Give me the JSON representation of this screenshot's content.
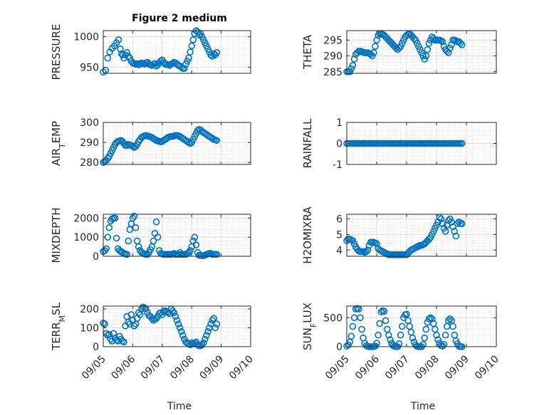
{
  "figure": {
    "title": "Figure 2 medium",
    "xlabel": "Time",
    "x_ticks": [
      "09/05",
      "09/06",
      "09/07",
      "09/08",
      "09/09",
      "09/10"
    ],
    "marker_color": "#0072bd",
    "grid_color": "#dcdcdc"
  },
  "chart_data": [
    {
      "type": "scatter",
      "title": "Figure 2 medium",
      "ylabel": "PRESSURE",
      "xlabel": "",
      "xlim": [
        0,
        5
      ],
      "ylim": [
        940,
        1010
      ],
      "yticks": [
        950,
        1000
      ],
      "x": [
        0.0,
        0.08,
        0.15,
        0.22,
        0.3,
        0.38,
        0.45,
        0.52,
        0.58,
        0.62,
        0.66,
        0.7,
        0.75,
        0.8,
        0.85,
        0.9,
        0.95,
        1.0,
        1.05,
        1.1,
        1.15,
        1.2,
        1.25,
        1.3,
        1.35,
        1.4,
        1.45,
        1.5,
        1.55,
        1.6,
        1.65,
        1.7,
        1.75,
        1.8,
        1.85,
        1.9,
        1.95,
        2.0,
        2.05,
        2.1,
        2.15,
        2.2,
        2.25,
        2.3,
        2.35,
        2.4,
        2.45,
        2.5,
        2.55,
        2.6,
        2.65,
        2.7,
        2.75,
        2.8,
        2.85,
        2.9,
        2.95,
        3.0,
        3.05,
        3.1,
        3.15,
        3.2,
        3.25,
        3.3,
        3.35,
        3.4,
        3.45,
        3.5,
        3.55,
        3.6,
        3.65,
        3.7,
        3.75,
        3.8,
        3.85
      ],
      "y": [
        942,
        945,
        965,
        975,
        981,
        985,
        990,
        995,
        980,
        972,
        970,
        965,
        970,
        974,
        968,
        965,
        960,
        957,
        956,
        955,
        956,
        954,
        955,
        957,
        956,
        955,
        957,
        958,
        955,
        954,
        953,
        955,
        956,
        952,
        954,
        957,
        960,
        962,
        958,
        955,
        955,
        954,
        953,
        955,
        956,
        958,
        957,
        955,
        953,
        952,
        950,
        948,
        948,
        955,
        960,
        965,
        975,
        985,
        995,
        1005,
        1010,
        1008,
        1003,
        1005,
        1000,
        995,
        990,
        985,
        980,
        975,
        970,
        968,
        972,
        970,
        974
      ]
    },
    {
      "type": "scatter",
      "ylabel": "THETA",
      "xlabel": "",
      "xlim": [
        0,
        5
      ],
      "ylim": [
        284.5,
        298
      ],
      "yticks": [
        285,
        290,
        295
      ],
      "x": [
        0.0,
        0.05,
        0.1,
        0.15,
        0.2,
        0.25,
        0.3,
        0.35,
        0.4,
        0.45,
        0.5,
        0.55,
        0.6,
        0.65,
        0.7,
        0.75,
        0.8,
        0.85,
        0.9,
        0.95,
        1.0,
        1.05,
        1.1,
        1.15,
        1.2,
        1.25,
        1.3,
        1.35,
        1.4,
        1.45,
        1.5,
        1.55,
        1.6,
        1.65,
        1.7,
        1.75,
        1.8,
        1.85,
        1.9,
        1.95,
        2.0,
        2.05,
        2.1,
        2.15,
        2.2,
        2.25,
        2.3,
        2.35,
        2.4,
        2.45,
        2.5,
        2.55,
        2.6,
        2.65,
        2.7,
        2.75,
        2.8,
        2.85,
        2.9,
        2.95,
        3.0,
        3.05,
        3.1,
        3.15,
        3.2,
        3.25,
        3.3,
        3.35,
        3.4,
        3.45,
        3.5,
        3.55,
        3.6,
        3.65,
        3.7,
        3.75,
        3.8,
        3.85
      ],
      "y": [
        285,
        285,
        285,
        286,
        287,
        289,
        290.5,
        291,
        291.5,
        291.5,
        291.3,
        291.2,
        291,
        291,
        291,
        290.8,
        290.5,
        290,
        291,
        293,
        295,
        296.5,
        297,
        297,
        296.8,
        296.5,
        296,
        295.5,
        295,
        294.5,
        294,
        293.5,
        293,
        292.5,
        292,
        292.5,
        293,
        294,
        295,
        296,
        296.5,
        296.8,
        297,
        296.5,
        296,
        295.5,
        295,
        294,
        293,
        292,
        291,
        290,
        289,
        290,
        292,
        294,
        295,
        296,
        295.5,
        295,
        295,
        295,
        295,
        294.8,
        294.5,
        293,
        292,
        291.5,
        291,
        292.5,
        293.5,
        295,
        295,
        294.8,
        294.5,
        294.5,
        294,
        293.5
      ]
    },
    {
      "type": "scatter",
      "ylabel": "AIR_TEMP",
      "xlabel": "",
      "xlim": [
        0,
        5
      ],
      "ylim": [
        279,
        300
      ],
      "yticks": [
        280,
        290,
        300
      ],
      "x": [
        0.0,
        0.05,
        0.1,
        0.15,
        0.2,
        0.25,
        0.3,
        0.35,
        0.4,
        0.45,
        0.5,
        0.55,
        0.6,
        0.65,
        0.7,
        0.75,
        0.8,
        0.85,
        0.9,
        0.95,
        1.0,
        1.05,
        1.1,
        1.15,
        1.2,
        1.25,
        1.3,
        1.35,
        1.4,
        1.45,
        1.5,
        1.55,
        1.6,
        1.65,
        1.7,
        1.75,
        1.8,
        1.85,
        1.9,
        1.95,
        2.0,
        2.05,
        2.1,
        2.15,
        2.2,
        2.25,
        2.3,
        2.35,
        2.4,
        2.45,
        2.5,
        2.55,
        2.6,
        2.65,
        2.7,
        2.75,
        2.8,
        2.85,
        2.9,
        2.95,
        3.0,
        3.05,
        3.1,
        3.15,
        3.2,
        3.25,
        3.3,
        3.35,
        3.4,
        3.45,
        3.5,
        3.55,
        3.6,
        3.65,
        3.7,
        3.75,
        3.8,
        3.85
      ],
      "y": [
        280,
        280.5,
        281,
        282,
        283,
        284.5,
        286,
        287.5,
        289,
        290,
        290.5,
        290.8,
        291,
        290.5,
        289.5,
        288.5,
        288.5,
        289,
        288.8,
        288.5,
        288,
        287.5,
        288,
        289,
        290.5,
        291.5,
        292.5,
        293,
        293.3,
        293.5,
        293.2,
        293,
        292.8,
        292.5,
        292,
        291.5,
        291,
        290.8,
        290.5,
        290.3,
        290.5,
        291,
        291.5,
        292,
        292.5,
        292.8,
        293,
        293,
        293.2,
        293.5,
        293.5,
        293.3,
        293,
        292.5,
        292,
        291.5,
        291,
        290.5,
        290,
        289.5,
        290,
        291.5,
        293,
        294.5,
        296,
        296.5,
        296.2,
        295.5,
        295,
        294.5,
        294,
        293.5,
        293,
        292.5,
        292,
        291.5,
        291.2,
        291
      ]
    },
    {
      "type": "scatter",
      "ylabel": "RAINFALL",
      "xlabel": "",
      "xlim": [
        0,
        5
      ],
      "ylim": [
        -1,
        1
      ],
      "yticks": [
        -1,
        0,
        1
      ],
      "x": [
        0.0,
        0.05,
        0.1,
        0.15,
        0.2,
        0.25,
        0.3,
        0.35,
        0.4,
        0.45,
        0.5,
        0.55,
        0.6,
        0.65,
        0.7,
        0.75,
        0.8,
        0.85,
        0.9,
        0.95,
        1.0,
        1.05,
        1.1,
        1.15,
        1.2,
        1.25,
        1.3,
        1.35,
        1.4,
        1.45,
        1.5,
        1.55,
        1.6,
        1.65,
        1.7,
        1.75,
        1.8,
        1.85,
        1.9,
        1.95,
        2.0,
        2.05,
        2.1,
        2.15,
        2.2,
        2.25,
        2.3,
        2.35,
        2.4,
        2.45,
        2.5,
        2.55,
        2.6,
        2.65,
        2.7,
        2.75,
        2.8,
        2.85,
        2.9,
        2.95,
        3.0,
        3.05,
        3.1,
        3.15,
        3.2,
        3.25,
        3.3,
        3.35,
        3.4,
        3.45,
        3.5,
        3.55,
        3.6,
        3.65,
        3.7,
        3.75,
        3.8,
        3.85
      ],
      "y": [
        0,
        0,
        0,
        0,
        0,
        0,
        0,
        0,
        0,
        0,
        0,
        0,
        0,
        0,
        0,
        0,
        0,
        0,
        0,
        0,
        0,
        0,
        0,
        0,
        0,
        0,
        0,
        0,
        0,
        0,
        0,
        0,
        0,
        0,
        0,
        0,
        0,
        0,
        0,
        0,
        0,
        0,
        0,
        0,
        0,
        0,
        0,
        0,
        0,
        0,
        0,
        0,
        0,
        0,
        0,
        0,
        0,
        0,
        0,
        0,
        0,
        0,
        0,
        0,
        0,
        0,
        0,
        0,
        0,
        0,
        0,
        0,
        0,
        0,
        0,
        0,
        0,
        0
      ]
    },
    {
      "type": "scatter",
      "ylabel": "MIXDEPTH",
      "xlabel": "",
      "xlim": [
        0,
        5
      ],
      "ylim": [
        0,
        2200
      ],
      "yticks": [
        0,
        1000,
        2000
      ],
      "x": [
        0.0,
        0.05,
        0.1,
        0.15,
        0.2,
        0.25,
        0.3,
        0.35,
        0.4,
        0.45,
        0.5,
        0.55,
        0.6,
        0.65,
        0.7,
        0.75,
        0.8,
        0.85,
        0.9,
        0.95,
        1.0,
        1.05,
        1.1,
        1.15,
        1.2,
        1.25,
        1.3,
        1.35,
        1.4,
        1.45,
        1.5,
        1.55,
        1.6,
        1.65,
        1.7,
        1.75,
        1.8,
        1.85,
        1.9,
        1.95,
        2.0,
        2.05,
        2.1,
        2.15,
        2.2,
        2.25,
        2.3,
        2.35,
        2.4,
        2.45,
        2.5,
        2.55,
        2.6,
        2.65,
        2.7,
        2.75,
        2.8,
        2.85,
        2.9,
        2.95,
        3.0,
        3.05,
        3.1,
        3.15,
        3.2,
        3.25,
        3.3,
        3.35,
        3.4,
        3.45,
        3.5,
        3.55,
        3.6,
        3.65,
        3.7,
        3.75,
        3.8,
        3.85
      ],
      "y": [
        250,
        300,
        400,
        1000,
        1500,
        1850,
        1950,
        2000,
        2000,
        950,
        400,
        300,
        250,
        200,
        150,
        120,
        100,
        800,
        1400,
        1700,
        2000,
        2100,
        1500,
        800,
        500,
        300,
        200,
        150,
        120,
        100,
        100,
        200,
        350,
        500,
        800,
        1200,
        1800,
        1000,
        300,
        150,
        120,
        100,
        100,
        100,
        100,
        100,
        100,
        120,
        150,
        100,
        100,
        100,
        200,
        100,
        100,
        100,
        100,
        150,
        200,
        300,
        500,
        800,
        1000,
        600,
        200,
        50,
        50,
        30,
        30,
        50,
        100,
        120,
        150,
        150,
        100,
        100,
        100,
        100
      ]
    },
    {
      "type": "scatter",
      "ylabel": "H2OMIXRA",
      "xlabel": "",
      "xlim": [
        0,
        5
      ],
      "ylim": [
        3.6,
        6.3
      ],
      "yticks": [
        4,
        5,
        6
      ],
      "x": [
        0.0,
        0.05,
        0.1,
        0.15,
        0.2,
        0.25,
        0.3,
        0.35,
        0.4,
        0.45,
        0.5,
        0.55,
        0.6,
        0.65,
        0.7,
        0.75,
        0.8,
        0.85,
        0.9,
        0.95,
        1.0,
        1.05,
        1.1,
        1.15,
        1.2,
        1.25,
        1.3,
        1.35,
        1.4,
        1.45,
        1.5,
        1.55,
        1.6,
        1.65,
        1.7,
        1.75,
        1.8,
        1.85,
        1.9,
        1.95,
        2.0,
        2.05,
        2.1,
        2.15,
        2.2,
        2.25,
        2.3,
        2.35,
        2.4,
        2.45,
        2.5,
        2.55,
        2.6,
        2.65,
        2.7,
        2.75,
        2.8,
        2.85,
        2.9,
        2.95,
        3.0,
        3.05,
        3.1,
        3.15,
        3.2,
        3.25,
        3.3,
        3.35,
        3.4,
        3.45,
        3.5,
        3.55,
        3.6,
        3.65,
        3.7,
        3.75,
        3.8,
        3.85
      ],
      "y": [
        4.6,
        4.7,
        4.7,
        4.65,
        4.6,
        4.4,
        4.2,
        4.05,
        3.95,
        3.9,
        3.9,
        3.9,
        3.85,
        3.9,
        4.0,
        4.3,
        4.5,
        4.5,
        4.5,
        4.45,
        4.4,
        4.1,
        4.0,
        3.95,
        3.9,
        3.85,
        3.8,
        3.75,
        3.7,
        3.7,
        3.7,
        3.7,
        3.7,
        3.7,
        3.7,
        3.7,
        3.7,
        3.7,
        3.7,
        3.7,
        3.7,
        3.8,
        3.9,
        4.0,
        4.05,
        4.1,
        4.15,
        4.2,
        4.25,
        4.3,
        4.3,
        4.35,
        4.4,
        4.5,
        4.6,
        4.7,
        4.8,
        5.0,
        5.2,
        5.4,
        5.6,
        5.8,
        6.1,
        6.0,
        5.7,
        5.4,
        5.2,
        5.6,
        5.9,
        6.0,
        5.8,
        5.5,
        5.2,
        4.9,
        5.7,
        5.8,
        5.7,
        5.7
      ]
    },
    {
      "type": "scatter",
      "ylabel": "TERR_MSL",
      "xlabel": "",
      "xlim": [
        0,
        5
      ],
      "ylim": [
        0,
        215
      ],
      "yticks": [
        0,
        100,
        200
      ],
      "x": [
        0.0,
        0.05,
        0.1,
        0.15,
        0.2,
        0.25,
        0.3,
        0.35,
        0.4,
        0.45,
        0.5,
        0.55,
        0.6,
        0.65,
        0.7,
        0.75,
        0.8,
        0.85,
        0.9,
        0.95,
        1.0,
        1.05,
        1.1,
        1.15,
        1.2,
        1.25,
        1.3,
        1.35,
        1.4,
        1.45,
        1.5,
        1.55,
        1.6,
        1.65,
        1.7,
        1.75,
        1.8,
        1.85,
        1.9,
        1.95,
        2.0,
        2.05,
        2.1,
        2.15,
        2.2,
        2.25,
        2.3,
        2.35,
        2.4,
        2.45,
        2.5,
        2.55,
        2.6,
        2.65,
        2.7,
        2.75,
        2.8,
        2.85,
        2.9,
        2.95,
        3.0,
        3.05,
        3.1,
        3.15,
        3.2,
        3.25,
        3.3,
        3.35,
        3.4,
        3.45,
        3.5,
        3.55,
        3.6,
        3.65,
        3.7,
        3.75,
        3.8,
        3.85
      ],
      "y": [
        125,
        120,
        70,
        60,
        65,
        40,
        30,
        70,
        45,
        35,
        30,
        55,
        40,
        30,
        25,
        110,
        160,
        130,
        120,
        170,
        140,
        110,
        120,
        150,
        180,
        170,
        200,
        210,
        205,
        200,
        180,
        165,
        160,
        150,
        140,
        145,
        150,
        160,
        175,
        180,
        170,
        185,
        190,
        185,
        180,
        175,
        200,
        190,
        180,
        160,
        140,
        120,
        100,
        80,
        60,
        40,
        25,
        20,
        15,
        10,
        20,
        15,
        20,
        25,
        10,
        5,
        5,
        10,
        20,
        40,
        60,
        80,
        100,
        120,
        140,
        150,
        100,
        120
      ]
    },
    {
      "type": "scatter",
      "ylabel": "SUN_FLUX",
      "xlabel": "",
      "xlim": [
        0,
        5
      ],
      "ylim": [
        0,
        700
      ],
      "yticks": [
        0,
        500
      ],
      "x": [
        0.0,
        0.05,
        0.1,
        0.15,
        0.2,
        0.25,
        0.3,
        0.35,
        0.4,
        0.45,
        0.5,
        0.55,
        0.6,
        0.65,
        0.7,
        0.75,
        0.8,
        0.85,
        0.9,
        0.95,
        1.0,
        1.05,
        1.1,
        1.15,
        1.2,
        1.25,
        1.3,
        1.35,
        1.4,
        1.45,
        1.5,
        1.55,
        1.6,
        1.65,
        1.7,
        1.75,
        1.8,
        1.85,
        1.9,
        1.95,
        2.0,
        2.05,
        2.1,
        2.15,
        2.2,
        2.25,
        2.3,
        2.35,
        2.4,
        2.45,
        2.5,
        2.55,
        2.6,
        2.65,
        2.7,
        2.75,
        2.8,
        2.85,
        2.9,
        2.95,
        3.0,
        3.05,
        3.1,
        3.15,
        3.2,
        3.25,
        3.3,
        3.35,
        3.4,
        3.45,
        3.5,
        3.55,
        3.6,
        3.65,
        3.7,
        3.75,
        3.8,
        3.85
      ],
      "y": [
        10,
        30,
        80,
        180,
        350,
        500,
        650,
        660,
        650,
        500,
        300,
        150,
        60,
        20,
        5,
        0,
        0,
        0,
        0,
        10,
        60,
        200,
        400,
        600,
        620,
        610,
        450,
        300,
        200,
        120,
        60,
        20,
        5,
        0,
        0,
        50,
        200,
        350,
        500,
        550,
        560,
        450,
        350,
        250,
        150,
        80,
        30,
        5,
        0,
        0,
        0,
        40,
        150,
        300,
        420,
        480,
        500,
        480,
        400,
        300,
        200,
        120,
        60,
        20,
        10,
        40,
        200,
        350,
        450,
        480,
        450,
        350,
        200,
        100,
        50,
        10,
        0,
        0
      ]
    }
  ]
}
